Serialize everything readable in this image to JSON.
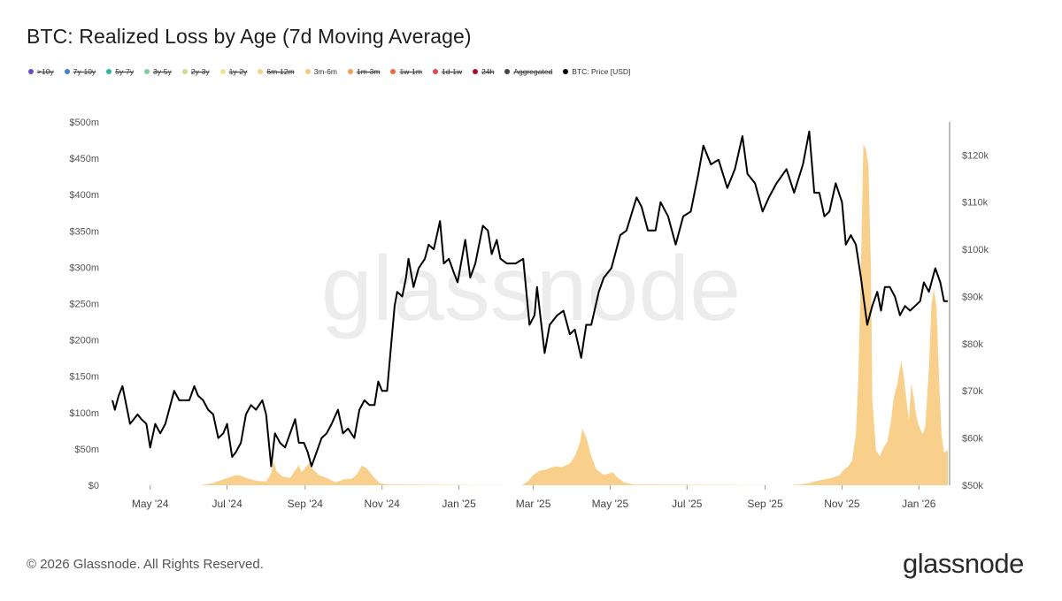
{
  "title": "BTC: Realized Loss by Age (7d Moving Average)",
  "legend": [
    {
      "label": ">10y",
      "color": "#6a4bc4",
      "active": false
    },
    {
      "label": "7y-10y",
      "color": "#3f7fd6",
      "active": false
    },
    {
      "label": "5y-7y",
      "color": "#2fb5a8",
      "active": false
    },
    {
      "label": "3y-5y",
      "color": "#7fcf9a",
      "active": false
    },
    {
      "label": "2y-3y",
      "color": "#c6e08a",
      "active": false
    },
    {
      "label": "1y-2y",
      "color": "#f3e68c",
      "active": false
    },
    {
      "label": "6m-12m",
      "color": "#f6d28a",
      "active": false
    },
    {
      "label": "3m-6m",
      "color": "#f8c778",
      "active": true
    },
    {
      "label": "1m-3m",
      "color": "#f3a25a",
      "active": false
    },
    {
      "label": "1w-1m",
      "color": "#ef6b3a",
      "active": false
    },
    {
      "label": "1d-1w",
      "color": "#e04a4a",
      "active": false
    },
    {
      "label": "24h",
      "color": "#a8102a",
      "active": false
    },
    {
      "label": "Aggregated",
      "color": "#444444",
      "active": false
    },
    {
      "label": "BTC: Price [USD]",
      "color": "#000000",
      "active": true
    }
  ],
  "watermark": "glassnode",
  "footer": {
    "copyright": "© 2026 Glassnode. All Rights Reserved.",
    "logo": "glassnode"
  },
  "colors": {
    "area": "#f8c778",
    "price": "#000000",
    "axis_text": "#555555",
    "watermark": "#ececec"
  },
  "chart_data": {
    "type": "area",
    "x_tick_labels": [
      "May '24",
      "Jul '24",
      "Sep '24",
      "Nov '24",
      "Jan '25",
      "Mar '25",
      "May '25",
      "Jul '25",
      "Sep '25",
      "Nov '25",
      "Jan '26"
    ],
    "x_range": [
      "2024-04-01",
      "2026-01-24"
    ],
    "y_left": {
      "label": "",
      "ticks": [
        "$0",
        "$50m",
        "$100m",
        "$150m",
        "$200m",
        "$250m",
        "$300m",
        "$350m",
        "$400m",
        "$450m",
        "$500m"
      ],
      "range": [
        0,
        500
      ]
    },
    "y_right": {
      "label": "",
      "ticks": [
        "$50k",
        "$60k",
        "$70k",
        "$80k",
        "$90k",
        "$100k",
        "$110k",
        "$120k"
      ],
      "range": [
        50,
        127
      ]
    },
    "grid": false,
    "legend_position": "top-left",
    "series": [
      {
        "name": "3m-6m",
        "axis": "left",
        "unit": "USD millions",
        "points": [
          [
            "2024-04-01",
            0
          ],
          [
            "2024-06-10",
            0
          ],
          [
            "2024-06-20",
            3
          ],
          [
            "2024-06-28",
            8
          ],
          [
            "2024-07-03",
            11
          ],
          [
            "2024-07-08",
            14
          ],
          [
            "2024-07-12",
            13
          ],
          [
            "2024-07-18",
            9
          ],
          [
            "2024-07-25",
            6
          ],
          [
            "2024-08-01",
            5
          ],
          [
            "2024-08-05",
            16
          ],
          [
            "2024-08-07",
            34
          ],
          [
            "2024-08-09",
            20
          ],
          [
            "2024-08-14",
            12
          ],
          [
            "2024-08-20",
            10
          ],
          [
            "2024-08-27",
            28
          ],
          [
            "2024-08-29",
            18
          ],
          [
            "2024-09-02",
            26
          ],
          [
            "2024-09-04",
            30
          ],
          [
            "2024-09-07",
            22
          ],
          [
            "2024-09-12",
            14
          ],
          [
            "2024-09-18",
            10
          ],
          [
            "2024-09-25",
            4
          ],
          [
            "2024-10-02",
            8
          ],
          [
            "2024-10-08",
            9
          ],
          [
            "2024-10-12",
            15
          ],
          [
            "2024-10-16",
            27
          ],
          [
            "2024-10-20",
            23
          ],
          [
            "2024-10-25",
            12
          ],
          [
            "2024-10-30",
            3
          ],
          [
            "2024-11-06",
            1
          ],
          [
            "2025-02-20",
            0
          ],
          [
            "2025-02-25",
            6
          ],
          [
            "2025-03-01",
            14
          ],
          [
            "2025-03-06",
            20
          ],
          [
            "2025-03-12",
            22
          ],
          [
            "2025-03-18",
            26
          ],
          [
            "2025-03-24",
            25
          ],
          [
            "2025-03-30",
            30
          ],
          [
            "2025-04-03",
            40
          ],
          [
            "2025-04-07",
            58
          ],
          [
            "2025-04-09",
            78
          ],
          [
            "2025-04-12",
            66
          ],
          [
            "2025-04-16",
            40
          ],
          [
            "2025-04-20",
            22
          ],
          [
            "2025-04-26",
            14
          ],
          [
            "2025-05-03",
            18
          ],
          [
            "2025-05-06",
            12
          ],
          [
            "2025-05-12",
            4
          ],
          [
            "2025-05-20",
            1
          ],
          [
            "2025-09-20",
            0
          ],
          [
            "2025-09-28",
            1
          ],
          [
            "2025-10-06",
            3
          ],
          [
            "2025-10-12",
            6
          ],
          [
            "2025-10-18",
            8
          ],
          [
            "2025-10-24",
            10
          ],
          [
            "2025-10-30",
            14
          ],
          [
            "2025-11-03",
            22
          ],
          [
            "2025-11-06",
            26
          ],
          [
            "2025-11-09",
            34
          ],
          [
            "2025-11-12",
            70
          ],
          [
            "2025-11-14",
            150
          ],
          [
            "2025-11-16",
            300
          ],
          [
            "2025-11-18",
            470
          ],
          [
            "2025-11-20",
            462
          ],
          [
            "2025-11-22",
            440
          ],
          [
            "2025-11-24",
            300
          ],
          [
            "2025-11-25",
            120
          ],
          [
            "2025-11-28",
            48
          ],
          [
            "2025-12-01",
            40
          ],
          [
            "2025-12-04",
            52
          ],
          [
            "2025-12-07",
            60
          ],
          [
            "2025-12-10",
            90
          ],
          [
            "2025-12-12",
            120
          ],
          [
            "2025-12-15",
            140
          ],
          [
            "2025-12-18",
            172
          ],
          [
            "2025-12-20",
            150
          ],
          [
            "2025-12-22",
            120
          ],
          [
            "2025-12-24",
            90
          ],
          [
            "2025-12-26",
            140
          ],
          [
            "2025-12-28",
            120
          ],
          [
            "2025-12-30",
            95
          ],
          [
            "2026-01-01",
            82
          ],
          [
            "2026-01-04",
            70
          ],
          [
            "2026-01-06",
            80
          ],
          [
            "2026-01-09",
            160
          ],
          [
            "2026-01-11",
            250
          ],
          [
            "2026-01-13",
            270
          ],
          [
            "2026-01-15",
            245
          ],
          [
            "2026-01-17",
            150
          ],
          [
            "2026-01-19",
            70
          ],
          [
            "2026-01-21",
            45
          ],
          [
            "2026-01-24",
            48
          ]
        ]
      },
      {
        "name": "BTC: Price [USD]",
        "axis": "right",
        "unit": "USD thousands",
        "points": [
          [
            "2024-04-01",
            68
          ],
          [
            "2024-04-03",
            66
          ],
          [
            "2024-04-06",
            69
          ],
          [
            "2024-04-09",
            71
          ],
          [
            "2024-04-12",
            67
          ],
          [
            "2024-04-15",
            63
          ],
          [
            "2024-04-18",
            64
          ],
          [
            "2024-04-21",
            65
          ],
          [
            "2024-04-24",
            64
          ],
          [
            "2024-04-28",
            63
          ],
          [
            "2024-05-01",
            58
          ],
          [
            "2024-05-05",
            63
          ],
          [
            "2024-05-09",
            61
          ],
          [
            "2024-05-13",
            63
          ],
          [
            "2024-05-16",
            66
          ],
          [
            "2024-05-20",
            70
          ],
          [
            "2024-05-24",
            68
          ],
          [
            "2024-05-28",
            68
          ],
          [
            "2024-06-01",
            68
          ],
          [
            "2024-06-05",
            71
          ],
          [
            "2024-06-08",
            69
          ],
          [
            "2024-06-12",
            68
          ],
          [
            "2024-06-16",
            66
          ],
          [
            "2024-06-20",
            65
          ],
          [
            "2024-06-24",
            60
          ],
          [
            "2024-06-28",
            61
          ],
          [
            "2024-07-01",
            63
          ],
          [
            "2024-07-05",
            56
          ],
          [
            "2024-07-08",
            57
          ],
          [
            "2024-07-12",
            59
          ],
          [
            "2024-07-16",
            65
          ],
          [
            "2024-07-20",
            67
          ],
          [
            "2024-07-24",
            66
          ],
          [
            "2024-07-29",
            68
          ],
          [
            "2024-08-01",
            65
          ],
          [
            "2024-08-05",
            54
          ],
          [
            "2024-08-08",
            61
          ],
          [
            "2024-08-12",
            59
          ],
          [
            "2024-08-16",
            58
          ],
          [
            "2024-08-20",
            61
          ],
          [
            "2024-08-24",
            64
          ],
          [
            "2024-08-27",
            59
          ],
          [
            "2024-08-31",
            59
          ],
          [
            "2024-09-03",
            57
          ],
          [
            "2024-09-06",
            54
          ],
          [
            "2024-09-10",
            57
          ],
          [
            "2024-09-14",
            60
          ],
          [
            "2024-09-18",
            61
          ],
          [
            "2024-09-22",
            63
          ],
          [
            "2024-09-27",
            66
          ],
          [
            "2024-10-01",
            61
          ],
          [
            "2024-10-05",
            62
          ],
          [
            "2024-10-10",
            60
          ],
          [
            "2024-10-14",
            66
          ],
          [
            "2024-10-18",
            68
          ],
          [
            "2024-10-22",
            67
          ],
          [
            "2024-10-26",
            67
          ],
          [
            "2024-10-29",
            72
          ],
          [
            "2024-11-01",
            70
          ],
          [
            "2024-11-05",
            70
          ],
          [
            "2024-11-07",
            76
          ],
          [
            "2024-11-11",
            88
          ],
          [
            "2024-11-13",
            91
          ],
          [
            "2024-11-17",
            90
          ],
          [
            "2024-11-20",
            94
          ],
          [
            "2024-11-22",
            98
          ],
          [
            "2024-11-26",
            92
          ],
          [
            "2024-11-30",
            96
          ],
          [
            "2024-12-05",
            98
          ],
          [
            "2024-12-08",
            101
          ],
          [
            "2024-12-12",
            100
          ],
          [
            "2024-12-17",
            106
          ],
          [
            "2024-12-20",
            97
          ],
          [
            "2024-12-24",
            98
          ],
          [
            "2024-12-28",
            95
          ],
          [
            "2024-12-31",
            93
          ],
          [
            "2025-01-06",
            102
          ],
          [
            "2025-01-10",
            94
          ],
          [
            "2025-01-14",
            97
          ],
          [
            "2025-01-20",
            105
          ],
          [
            "2025-01-24",
            104
          ],
          [
            "2025-01-27",
            99
          ],
          [
            "2025-01-31",
            102
          ],
          [
            "2025-02-03",
            98
          ],
          [
            "2025-02-08",
            97
          ],
          [
            "2025-02-15",
            97
          ],
          [
            "2025-02-21",
            98
          ],
          [
            "2025-02-26",
            84
          ],
          [
            "2025-03-02",
            86
          ],
          [
            "2025-03-04",
            92
          ],
          [
            "2025-03-10",
            78
          ],
          [
            "2025-03-14",
            84
          ],
          [
            "2025-03-20",
            86
          ],
          [
            "2025-03-25",
            87
          ],
          [
            "2025-03-30",
            82
          ],
          [
            "2025-04-03",
            83
          ],
          [
            "2025-04-08",
            77
          ],
          [
            "2025-04-12",
            84
          ],
          [
            "2025-04-16",
            84
          ],
          [
            "2025-04-22",
            91
          ],
          [
            "2025-04-26",
            94
          ],
          [
            "2025-05-02",
            96
          ],
          [
            "2025-05-09",
            103
          ],
          [
            "2025-05-14",
            104
          ],
          [
            "2025-05-22",
            111
          ],
          [
            "2025-05-26",
            109
          ],
          [
            "2025-05-31",
            104
          ],
          [
            "2025-06-06",
            104
          ],
          [
            "2025-06-10",
            110
          ],
          [
            "2025-06-16",
            107
          ],
          [
            "2025-06-22",
            101
          ],
          [
            "2025-06-28",
            107
          ],
          [
            "2025-07-04",
            108
          ],
          [
            "2025-07-10",
            116
          ],
          [
            "2025-07-14",
            122
          ],
          [
            "2025-07-20",
            118
          ],
          [
            "2025-07-26",
            119
          ],
          [
            "2025-08-02",
            113
          ],
          [
            "2025-08-08",
            117
          ],
          [
            "2025-08-14",
            124
          ],
          [
            "2025-08-18",
            116
          ],
          [
            "2025-08-24",
            114
          ],
          [
            "2025-08-30",
            108
          ],
          [
            "2025-09-04",
            111
          ],
          [
            "2025-09-10",
            114
          ],
          [
            "2025-09-18",
            117
          ],
          [
            "2025-09-24",
            112
          ],
          [
            "2025-10-01",
            118
          ],
          [
            "2025-10-06",
            125
          ],
          [
            "2025-10-10",
            112
          ],
          [
            "2025-10-14",
            112
          ],
          [
            "2025-10-18",
            107
          ],
          [
            "2025-10-22",
            108
          ],
          [
            "2025-10-27",
            114
          ],
          [
            "2025-11-01",
            110
          ],
          [
            "2025-11-04",
            101
          ],
          [
            "2025-11-08",
            103
          ],
          [
            "2025-11-12",
            101
          ],
          [
            "2025-11-16",
            94
          ],
          [
            "2025-11-21",
            84
          ],
          [
            "2025-11-25",
            88
          ],
          [
            "2025-11-29",
            91
          ],
          [
            "2025-12-02",
            87
          ],
          [
            "2025-12-05",
            92
          ],
          [
            "2025-12-09",
            92
          ],
          [
            "2025-12-13",
            90
          ],
          [
            "2025-12-17",
            86
          ],
          [
            "2025-12-21",
            88
          ],
          [
            "2025-12-25",
            87
          ],
          [
            "2025-12-29",
            88
          ],
          [
            "2026-01-02",
            89
          ],
          [
            "2026-01-05",
            93
          ],
          [
            "2026-01-09",
            91
          ],
          [
            "2026-01-14",
            96
          ],
          [
            "2026-01-18",
            93
          ],
          [
            "2026-01-21",
            89
          ],
          [
            "2026-01-24",
            89
          ]
        ]
      }
    ]
  }
}
